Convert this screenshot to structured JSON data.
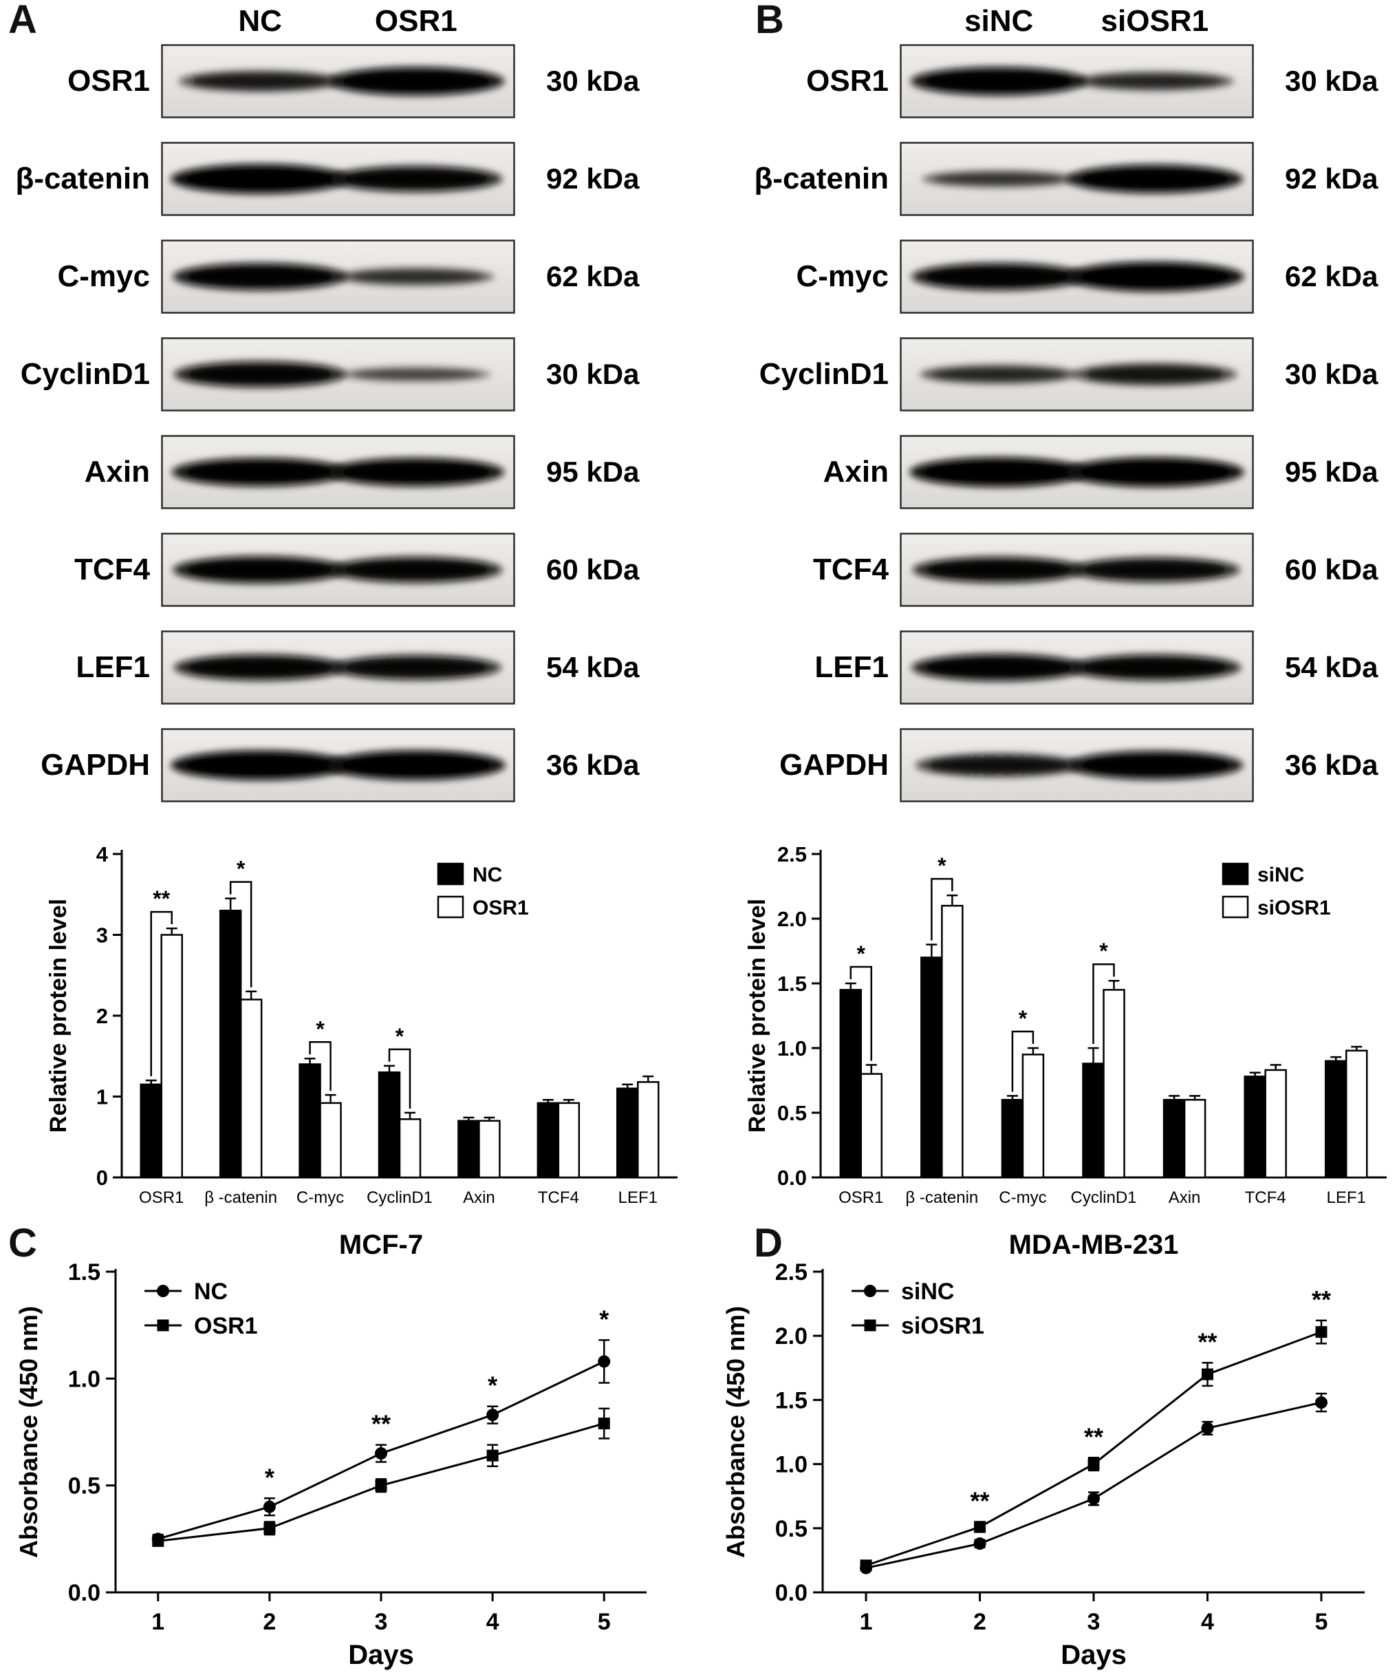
{
  "figure": {
    "panel_a": {
      "letter": "A",
      "lane_labels": [
        "NC",
        "OSR1"
      ],
      "blots": [
        {
          "protein": "OSR1",
          "kda": "30 kDa",
          "band_intensities": [
            0.6,
            0.95
          ]
        },
        {
          "protein": "β-catenin",
          "kda": "92 kDa",
          "band_intensities": [
            1.0,
            0.85
          ]
        },
        {
          "protein": "C-myc",
          "kda": "62 kDa",
          "band_intensities": [
            0.9,
            0.45
          ]
        },
        {
          "protein": "CyclinD1",
          "kda": "30 kDa",
          "band_intensities": [
            0.85,
            0.3
          ]
        },
        {
          "protein": "Axin",
          "kda": "95 kDa",
          "band_intensities": [
            0.95,
            0.95
          ]
        },
        {
          "protein": "TCF4",
          "kda": "60 kDa",
          "band_intensities": [
            0.9,
            0.85
          ]
        },
        {
          "protein": "LEF1",
          "kda": "54 kDa",
          "band_intensities": [
            0.85,
            0.8
          ]
        },
        {
          "protein": "GAPDH",
          "kda": "36 kDa",
          "band_intensities": [
            1.0,
            1.0
          ]
        }
      ]
    },
    "panel_b": {
      "letter": "B",
      "lane_labels": [
        "siNC",
        "siOSR1"
      ],
      "blots": [
        {
          "protein": "OSR1",
          "kda": "30 kDa",
          "band_intensities": [
            0.95,
            0.5
          ]
        },
        {
          "protein": "β-catenin",
          "kda": "92 kDa",
          "band_intensities": [
            0.4,
            0.95
          ]
        },
        {
          "protein": "C-myc",
          "kda": "62 kDa",
          "band_intensities": [
            0.9,
            1.0
          ]
        },
        {
          "protein": "CyclinD1",
          "kda": "30 kDa",
          "band_intensities": [
            0.5,
            0.65
          ]
        },
        {
          "protein": "Axin",
          "kda": "95 kDa",
          "band_intensities": [
            1.0,
            1.0
          ]
        },
        {
          "protein": "TCF4",
          "kda": "60 kDa",
          "band_intensities": [
            0.85,
            0.8
          ]
        },
        {
          "protein": "LEF1",
          "kda": "54 kDa",
          "band_intensities": [
            0.9,
            0.85
          ]
        },
        {
          "protein": "GAPDH",
          "kda": "36 kDa",
          "band_intensities": [
            0.7,
            0.95
          ]
        }
      ]
    },
    "panel_c": {
      "letter": "C",
      "title": "MCF-7"
    },
    "panel_d": {
      "letter": "D",
      "title": "MDA-MB-231"
    }
  },
  "colors": {
    "axis": "#000000",
    "bar_dark": "#000000",
    "bar_light": "#ffffff",
    "blot_border": "#2d2d2d",
    "band": "#0b0b0b"
  },
  "chart_data": [
    {
      "id": "panel_a_bar",
      "type": "bar",
      "title": "",
      "ylabel": "Relative protein level",
      "ylim": [
        0,
        4
      ],
      "yticks": [
        0,
        1,
        2,
        3,
        4
      ],
      "ytick_labels": [
        "0",
        "1",
        "2",
        "3",
        "4"
      ],
      "categories": [
        "OSR1",
        "β -catenin",
        "C-myc",
        "CyclinD1",
        "Axin",
        "TCF4",
        "LEF1"
      ],
      "series": [
        {
          "name": "NC",
          "fill": "black",
          "values": [
            1.15,
            3.3,
            1.4,
            1.3,
            0.7,
            0.92,
            1.1
          ],
          "errors": [
            0.05,
            0.15,
            0.07,
            0.08,
            0.04,
            0.04,
            0.05
          ]
        },
        {
          "name": "OSR1",
          "fill": "white",
          "values": [
            3.0,
            2.2,
            0.92,
            0.72,
            0.7,
            0.92,
            1.18
          ],
          "errors": [
            0.08,
            0.1,
            0.1,
            0.08,
            0.04,
            0.04,
            0.07
          ]
        }
      ],
      "significance": [
        {
          "category_index": 0,
          "label": "**"
        },
        {
          "category_index": 1,
          "label": "*"
        },
        {
          "category_index": 2,
          "label": "*"
        },
        {
          "category_index": 3,
          "label": "*"
        }
      ],
      "legend_position": "top-right",
      "grid": false
    },
    {
      "id": "panel_b_bar",
      "type": "bar",
      "title": "",
      "ylabel": "Relative protein level",
      "ylim": [
        0,
        2.5
      ],
      "yticks": [
        0,
        0.5,
        1,
        1.5,
        2,
        2.5
      ],
      "ytick_labels": [
        "0.0",
        "0.5",
        "1.0",
        "1.5",
        "2.0",
        "2.5"
      ],
      "categories": [
        "OSR1",
        "β -catenin",
        "C-myc",
        "CyclinD1",
        "Axin",
        "TCF4",
        "LEF1"
      ],
      "series": [
        {
          "name": "siNC",
          "fill": "black",
          "values": [
            1.45,
            1.7,
            0.6,
            0.88,
            0.6,
            0.78,
            0.9
          ],
          "errors": [
            0.05,
            0.1,
            0.03,
            0.12,
            0.03,
            0.03,
            0.03
          ]
        },
        {
          "name": "siOSR1",
          "fill": "white",
          "values": [
            0.8,
            2.1,
            0.95,
            1.45,
            0.6,
            0.83,
            0.98
          ],
          "errors": [
            0.07,
            0.08,
            0.05,
            0.07,
            0.03,
            0.04,
            0.03
          ]
        }
      ],
      "significance": [
        {
          "category_index": 0,
          "label": "*"
        },
        {
          "category_index": 1,
          "label": "*"
        },
        {
          "category_index": 2,
          "label": "*"
        },
        {
          "category_index": 3,
          "label": "*"
        }
      ],
      "legend_position": "top-right",
      "grid": false
    },
    {
      "id": "panel_c_line",
      "type": "line",
      "title": "MCF-7",
      "xlabel": "Days",
      "ylabel": "Absorbance (450 nm)",
      "x": [
        1,
        2,
        3,
        4,
        5
      ],
      "xtick_labels": [
        "1",
        "2",
        "3",
        "4",
        "5"
      ],
      "ylim": [
        0,
        1.5
      ],
      "yticks": [
        0,
        0.5,
        1,
        1.5
      ],
      "ytick_labels": [
        "0.0",
        "0.5",
        "1.0",
        "1.5"
      ],
      "series": [
        {
          "name": "NC",
          "marker": "circle",
          "values": [
            0.25,
            0.4,
            0.65,
            0.83,
            1.08
          ],
          "errors": [
            0.02,
            0.04,
            0.04,
            0.04,
            0.1
          ]
        },
        {
          "name": "OSR1",
          "marker": "square",
          "values": [
            0.24,
            0.3,
            0.5,
            0.64,
            0.79
          ],
          "errors": [
            0.02,
            0.03,
            0.03,
            0.05,
            0.07
          ]
        }
      ],
      "significance": [
        {
          "x_index": 1,
          "label": "*"
        },
        {
          "x_index": 2,
          "label": "**"
        },
        {
          "x_index": 3,
          "label": "*"
        },
        {
          "x_index": 4,
          "label": "*"
        }
      ],
      "legend_position": "top-left",
      "grid": false
    },
    {
      "id": "panel_d_line",
      "type": "line",
      "title": "MDA-MB-231",
      "xlabel": "Days",
      "ylabel": "Absorbance (450 nm)",
      "x": [
        1,
        2,
        3,
        4,
        5
      ],
      "xtick_labels": [
        "1",
        "2",
        "3",
        "4",
        "5"
      ],
      "ylim": [
        0,
        2.5
      ],
      "yticks": [
        0,
        0.5,
        1,
        1.5,
        2,
        2.5
      ],
      "ytick_labels": [
        "0.0",
        "0.5",
        "1.0",
        "1.5",
        "2.0",
        "2.5"
      ],
      "series": [
        {
          "name": "siNC",
          "marker": "circle",
          "values": [
            0.19,
            0.38,
            0.73,
            1.28,
            1.48
          ],
          "errors": [
            0.02,
            0.03,
            0.05,
            0.05,
            0.07
          ]
        },
        {
          "name": "siOSR1",
          "marker": "square",
          "values": [
            0.21,
            0.51,
            1.0,
            1.7,
            2.03
          ],
          "errors": [
            0.02,
            0.04,
            0.05,
            0.09,
            0.09
          ]
        }
      ],
      "significance": [
        {
          "x_index": 1,
          "label": "**"
        },
        {
          "x_index": 2,
          "label": "**"
        },
        {
          "x_index": 3,
          "label": "**"
        },
        {
          "x_index": 4,
          "label": "**"
        }
      ],
      "legend_position": "top-left",
      "grid": false
    }
  ]
}
